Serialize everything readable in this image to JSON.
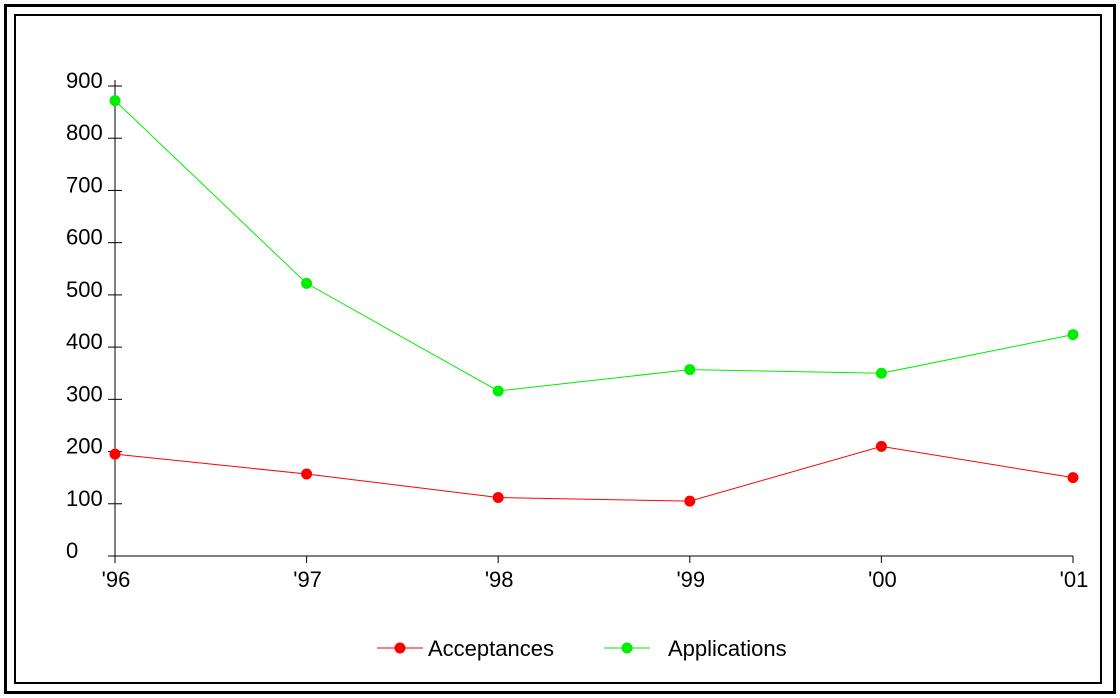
{
  "chart_data": {
    "type": "line",
    "title": "",
    "xlabel": "",
    "ylabel": "",
    "categories": [
      "'96",
      "'97",
      "'98",
      "'99",
      "'00",
      "'01"
    ],
    "ylim": [
      0,
      900
    ],
    "yticks": [
      0,
      100,
      200,
      300,
      400,
      500,
      600,
      700,
      800,
      900
    ],
    "grid": false,
    "legend_position": "bottom-center",
    "series": [
      {
        "name": "Acceptances",
        "color": "#ff0000",
        "values": [
          195,
          157,
          112,
          105,
          210,
          150
        ]
      },
      {
        "name": "Applications",
        "color": "#00ee00",
        "values": [
          872,
          522,
          316,
          357,
          350,
          424
        ]
      }
    ]
  }
}
